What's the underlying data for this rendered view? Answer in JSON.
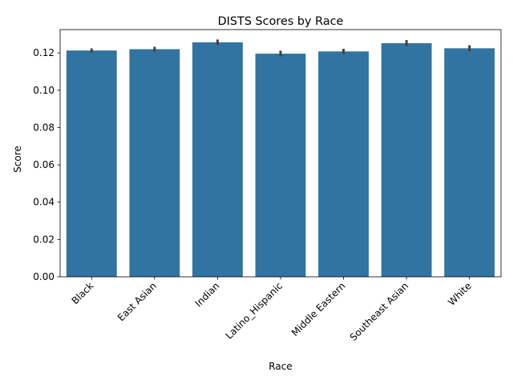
{
  "chart_data": {
    "type": "bar",
    "title": "DISTS Scores by Race",
    "xlabel": "Race",
    "ylabel": "Score",
    "categories": [
      "Black",
      "East Asian",
      "Indian",
      "Latino_Hispanic",
      "Middle Eastern",
      "Southeast Asian",
      "White"
    ],
    "values": [
      0.1213,
      0.122,
      0.1257,
      0.1196,
      0.1208,
      0.1252,
      0.1225
    ],
    "error_low": [
      0.1202,
      0.1207,
      0.1243,
      0.1181,
      0.1194,
      0.1236,
      0.1209
    ],
    "error_high": [
      0.1224,
      0.1233,
      0.1272,
      0.1212,
      0.1222,
      0.1269,
      0.1241
    ],
    "ylim": [
      0,
      0.1325
    ],
    "yticks": [
      0.0,
      0.02,
      0.04,
      0.06,
      0.08,
      0.1,
      0.12
    ],
    "ytick_labels": [
      "0.00",
      "0.02",
      "0.04",
      "0.06",
      "0.08",
      "0.10",
      "0.12"
    ],
    "bar_color": "#3274a1",
    "error_color": "#424242",
    "grid": false,
    "legend": "none"
  }
}
